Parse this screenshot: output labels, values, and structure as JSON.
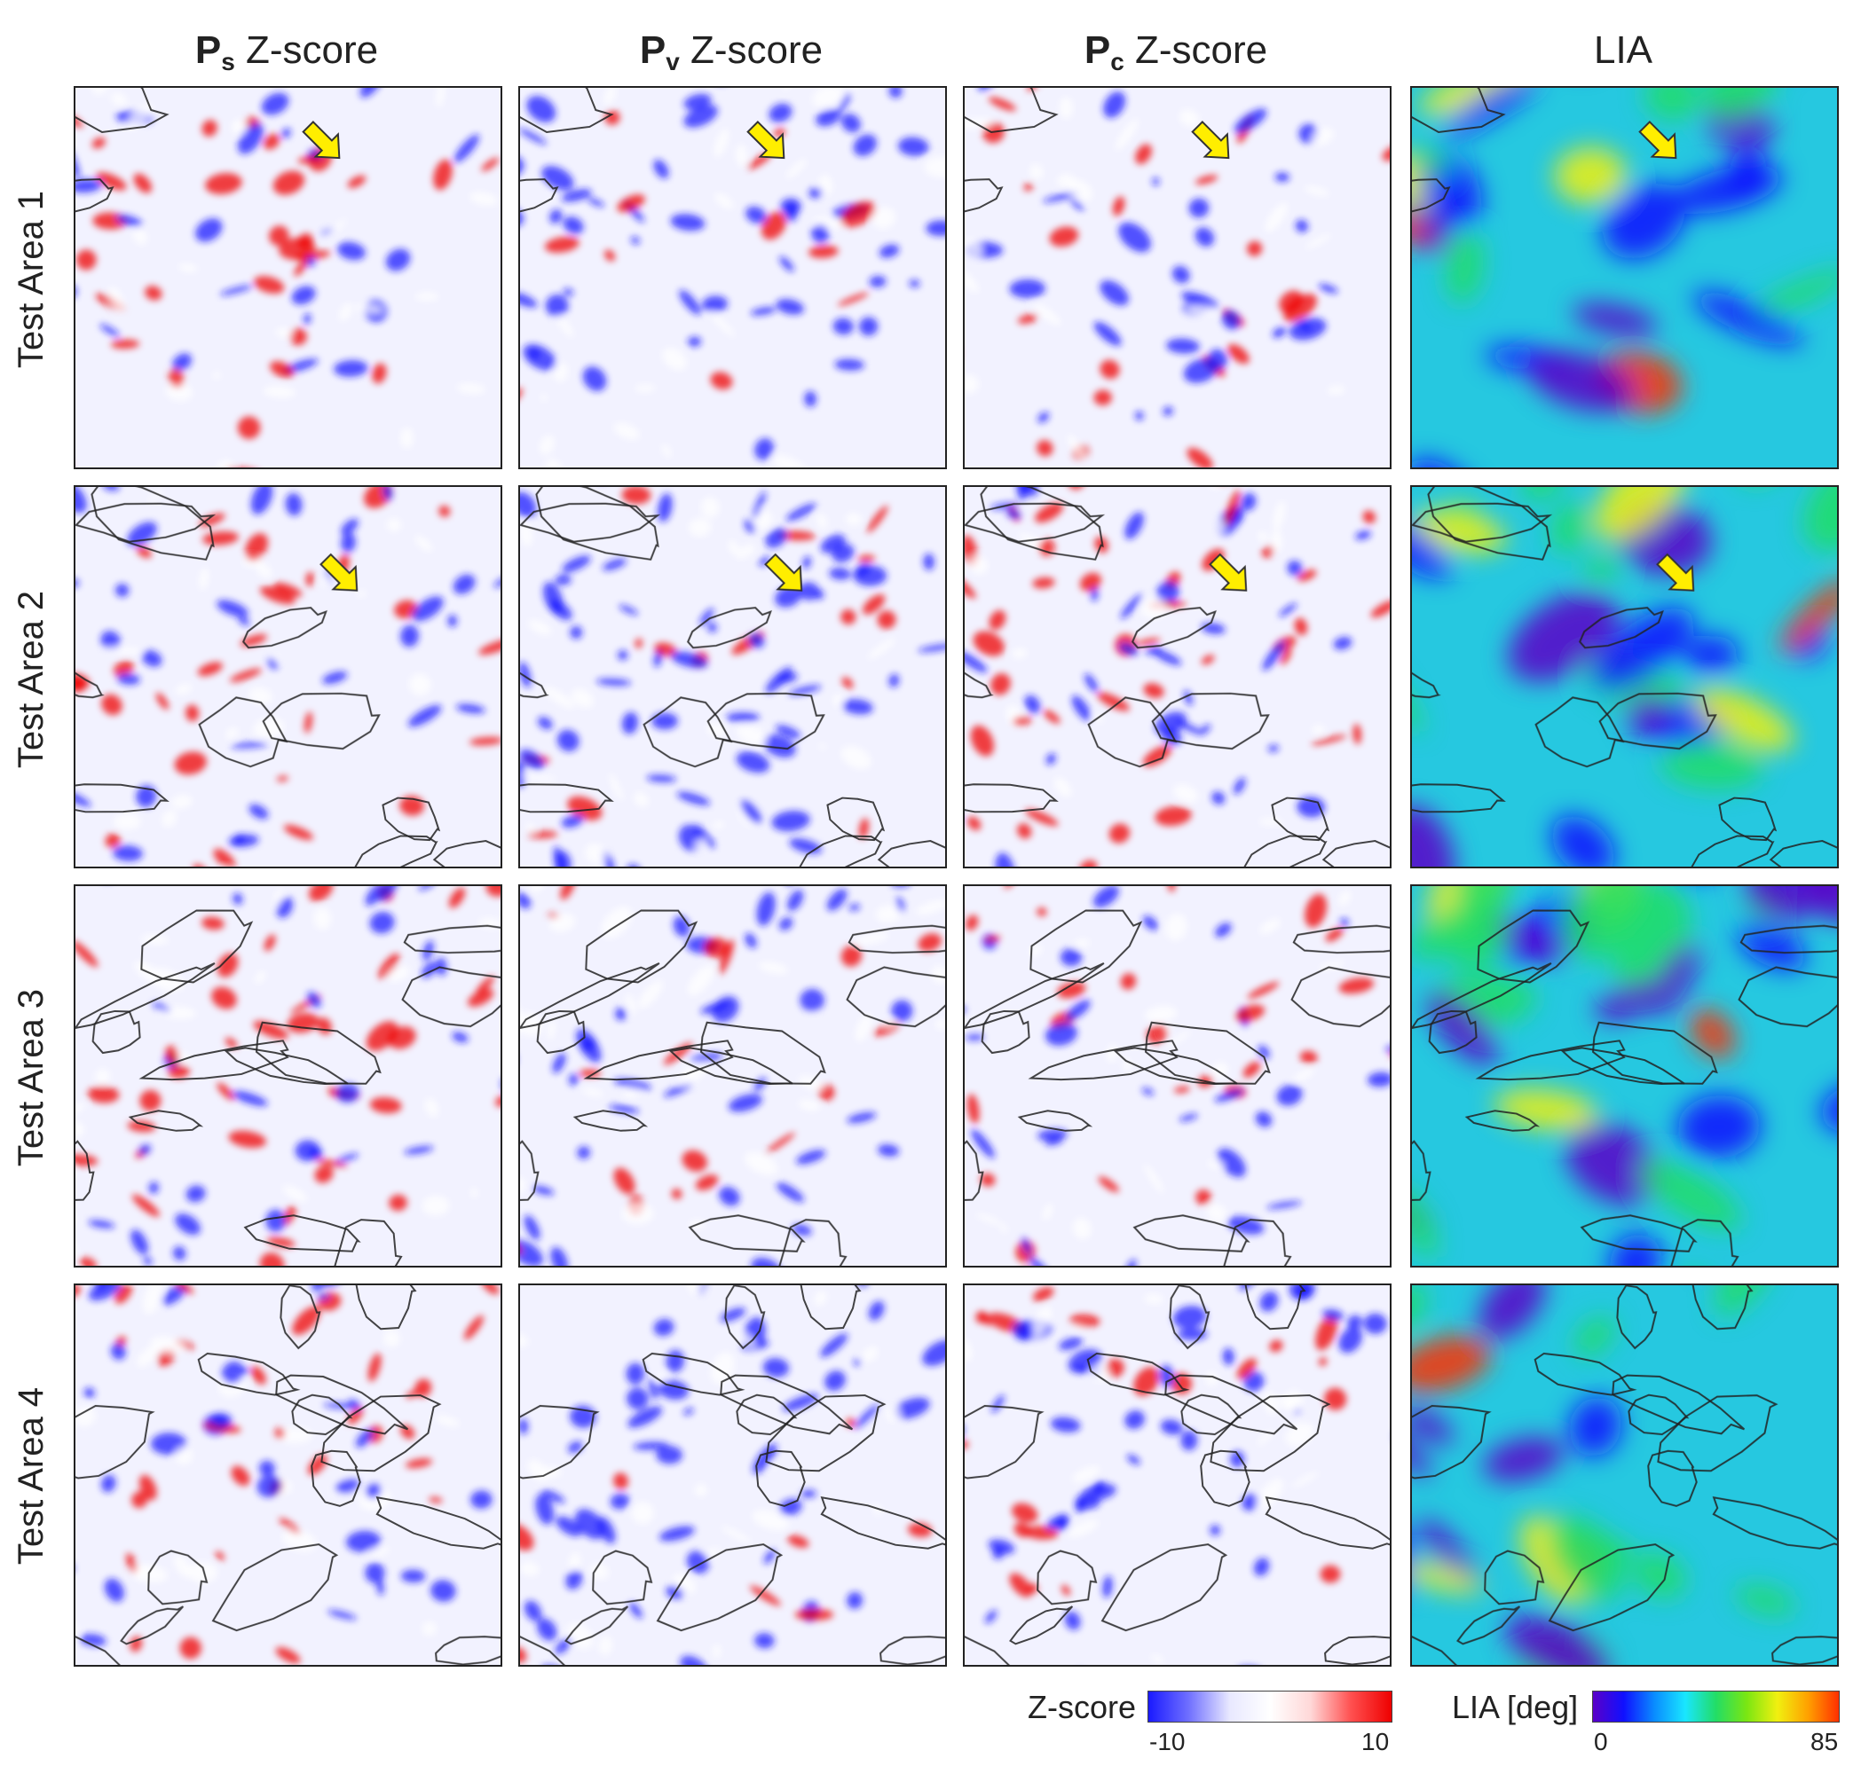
{
  "columns": [
    {
      "sym": "P",
      "sub": "s",
      "suffix": " Z-score"
    },
    {
      "sym": "P",
      "sub": "v",
      "suffix": " Z-score"
    },
    {
      "sym": "P",
      "sub": "c",
      "suffix": " Z-score"
    },
    {
      "sym": "LIA",
      "sub": "",
      "suffix": ""
    }
  ],
  "rows": [
    "Test Area 1",
    "Test Area 2",
    "Test Area 3",
    "Test Area 4"
  ],
  "legend_z": {
    "label": "Z-score",
    "min": "-10",
    "max": "10"
  },
  "legend_lia": {
    "label": "LIA [deg]",
    "min": "0",
    "max": "85"
  },
  "colors": {
    "z_neg": "#1a1aff",
    "z_mid": "#ffffff",
    "z_pos": "#ee0000",
    "lia_low": "#5a00c8",
    "lia_mid": "#22dd66",
    "lia_high": "#ff3000",
    "arrow": "#ffee00",
    "outline": "#222222"
  },
  "arrows_in_rows": [
    0,
    1
  ]
}
